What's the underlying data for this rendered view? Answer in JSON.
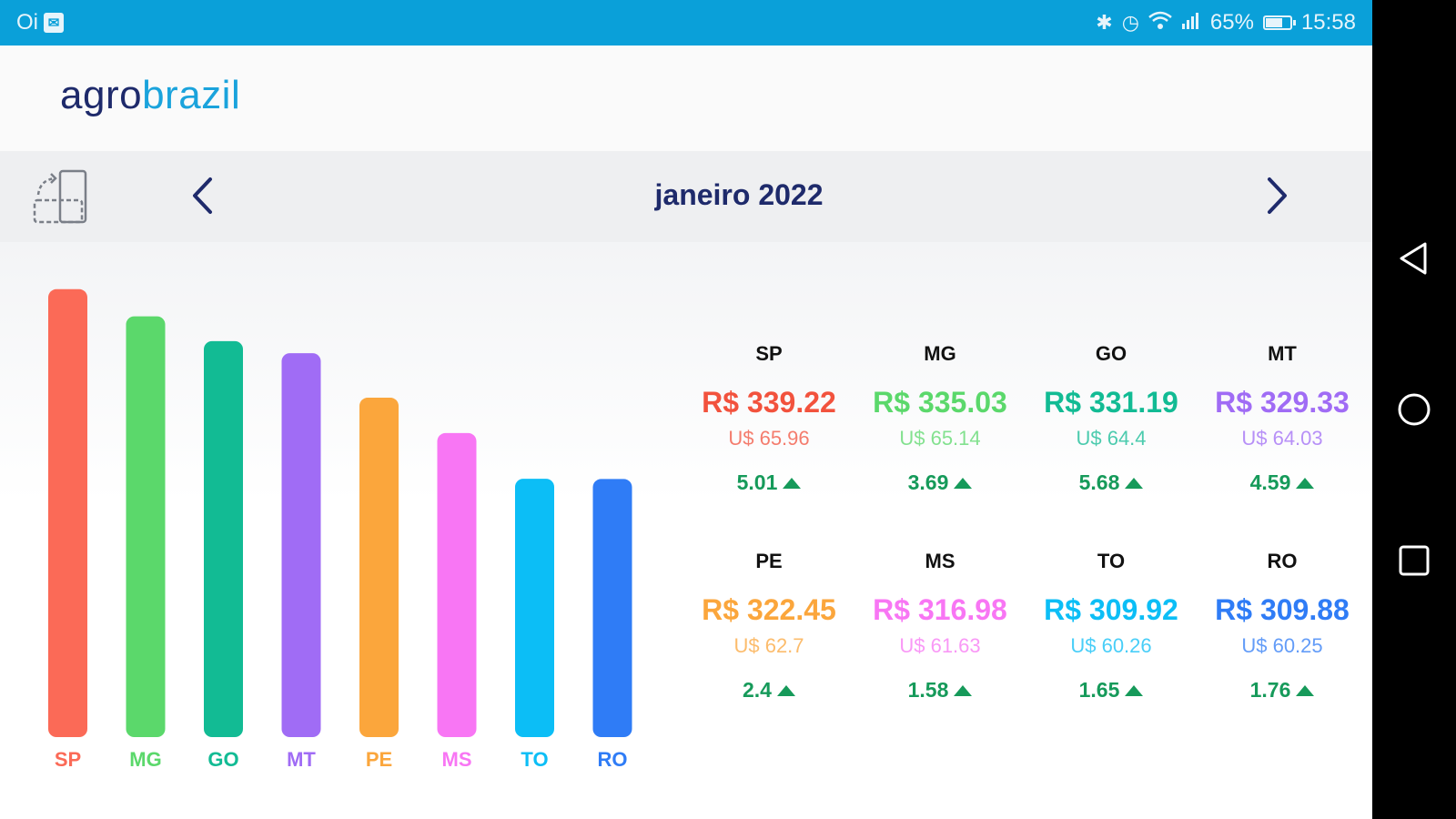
{
  "status_bar": {
    "carrier": "Oi",
    "battery": "65%",
    "time": "15:58"
  },
  "header": {
    "logo_part1": "agro",
    "logo_part2": "brazil"
  },
  "month_nav": {
    "label": "janeiro 2022"
  },
  "chart_data": {
    "type": "bar",
    "categories": [
      "SP",
      "MG",
      "GO",
      "MT",
      "PE",
      "MS",
      "TO",
      "RO"
    ],
    "values": [
      339.22,
      335.03,
      331.19,
      329.33,
      322.45,
      316.98,
      309.92,
      309.88
    ],
    "colors": [
      "#fb6a57",
      "#5bd86b",
      "#12bb94",
      "#a06cf5",
      "#fba63c",
      "#f876f4",
      "#0cbef6",
      "#2f7cf6"
    ],
    "ylim": [
      270,
      342
    ],
    "xlabel": "",
    "ylabel": "",
    "title": ""
  },
  "cards": [
    {
      "state": "SP",
      "brl": "R$ 339.22",
      "usd": "U$ 65.96",
      "change": "5.01",
      "color": "#f2523d"
    },
    {
      "state": "MG",
      "brl": "R$ 335.03",
      "usd": "U$ 65.14",
      "change": "3.69",
      "color": "#5bd86b"
    },
    {
      "state": "GO",
      "brl": "R$ 331.19",
      "usd": "U$ 64.4",
      "change": "5.68",
      "color": "#12bb94"
    },
    {
      "state": "MT",
      "brl": "R$ 329.33",
      "usd": "U$ 64.03",
      "change": "4.59",
      "color": "#a06cf5"
    },
    {
      "state": "PE",
      "brl": "R$ 322.45",
      "usd": "U$ 62.7",
      "change": "2.4",
      "color": "#fba63c"
    },
    {
      "state": "MS",
      "brl": "R$ 316.98",
      "usd": "U$ 61.63",
      "change": "1.58",
      "color": "#f876f4"
    },
    {
      "state": "TO",
      "brl": "R$ 309.92",
      "usd": "U$ 60.26",
      "change": "1.65",
      "color": "#0cbef6"
    },
    {
      "state": "RO",
      "brl": "R$ 309.88",
      "usd": "U$ 60.25",
      "change": "1.76",
      "color": "#2f7cf6"
    }
  ]
}
